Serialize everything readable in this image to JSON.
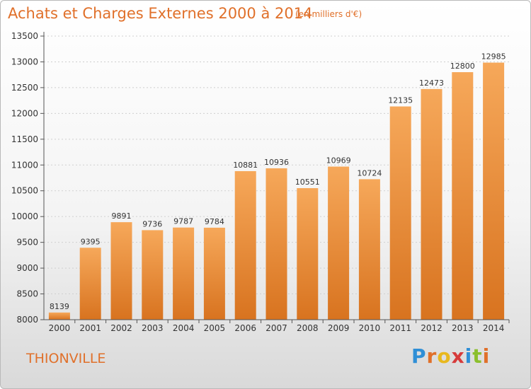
{
  "header": {
    "title": "Achats et Charges Externes 2000 à 2014",
    "subtitle": "(en milliers d'€)"
  },
  "footer": {
    "city": "THIONVILLE",
    "logo_text": "Proxiti"
  },
  "colors": {
    "accent": "#e0702a",
    "bar_top": "#f6a85a",
    "bar_bottom": "#d8731f"
  },
  "chart_data": {
    "type": "bar",
    "categories": [
      "2000",
      "2001",
      "2002",
      "2003",
      "2004",
      "2005",
      "2006",
      "2007",
      "2008",
      "2009",
      "2010",
      "2011",
      "2012",
      "2013",
      "2014"
    ],
    "values": [
      8139,
      9395,
      9891,
      9736,
      9787,
      9784,
      10881,
      10936,
      10551,
      10969,
      10724,
      12135,
      12473,
      12800,
      12985
    ],
    "ylim": [
      8000,
      13500
    ],
    "yticks": [
      8000,
      8500,
      9000,
      9500,
      10000,
      10500,
      11000,
      11500,
      12000,
      12500,
      13000,
      13500
    ],
    "grid": true
  }
}
